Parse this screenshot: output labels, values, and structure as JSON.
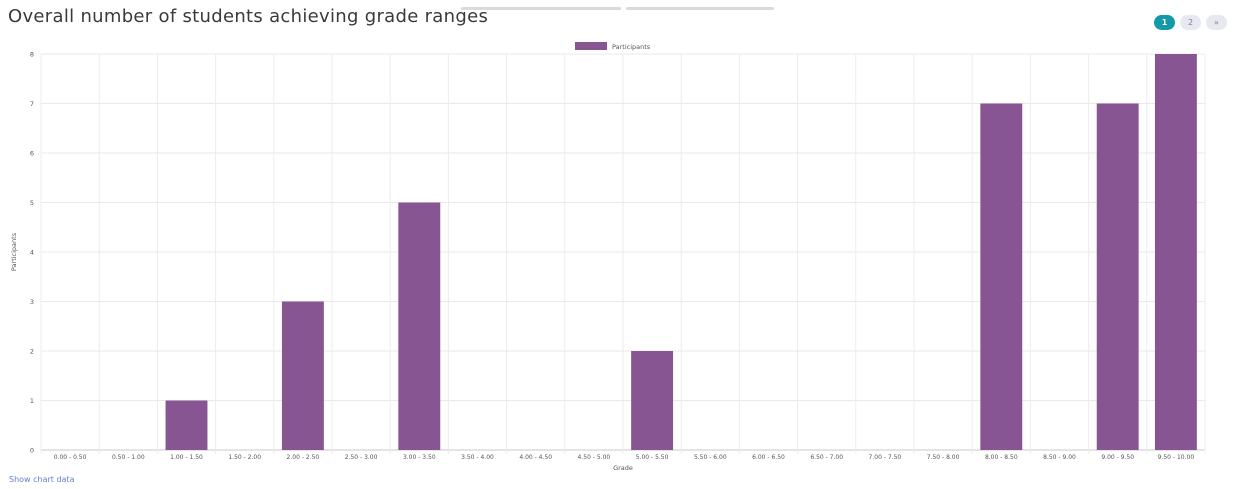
{
  "header": {
    "title": "Overall number of students achieving grade ranges"
  },
  "pagination": {
    "pages": [
      "1",
      "2"
    ],
    "active": "1",
    "next_label": "»"
  },
  "colors": {
    "bar": "#875591",
    "accent": "#1499a8",
    "link": "#6a7ed1"
  },
  "chart_data": {
    "type": "bar",
    "categories": [
      "0.00 - 0.50",
      "0.50 - 1.00",
      "1.00 - 1.50",
      "1.50 - 2.00",
      "2.00 - 2.50",
      "2.50 - 3.00",
      "3.00 - 3.50",
      "3.50 - 4.00",
      "4.00 - 4.50",
      "4.50 - 5.00",
      "5.00 - 5.50",
      "5.50 - 6.00",
      "6.00 - 6.50",
      "6.50 - 7.00",
      "7.00 - 7.50",
      "7.50 - 8.00",
      "8.00 - 8.50",
      "8.50 - 9.00",
      "9.00 - 9.50",
      "9.50 - 10.00"
    ],
    "series": [
      {
        "name": "Participants",
        "values": [
          0,
          0,
          1,
          0,
          3,
          0,
          5,
          0,
          0,
          0,
          2,
          0,
          0,
          0,
          0,
          0,
          7,
          0,
          7,
          8
        ]
      }
    ],
    "xlabel": "Grade",
    "ylabel": "Participants",
    "ylim": [
      0,
      8
    ],
    "yticks": [
      0,
      1,
      2,
      3,
      4,
      5,
      6,
      7,
      8
    ],
    "grid": true,
    "legend": "top-center"
  },
  "footer": {
    "show_data_label": "Show chart data"
  }
}
